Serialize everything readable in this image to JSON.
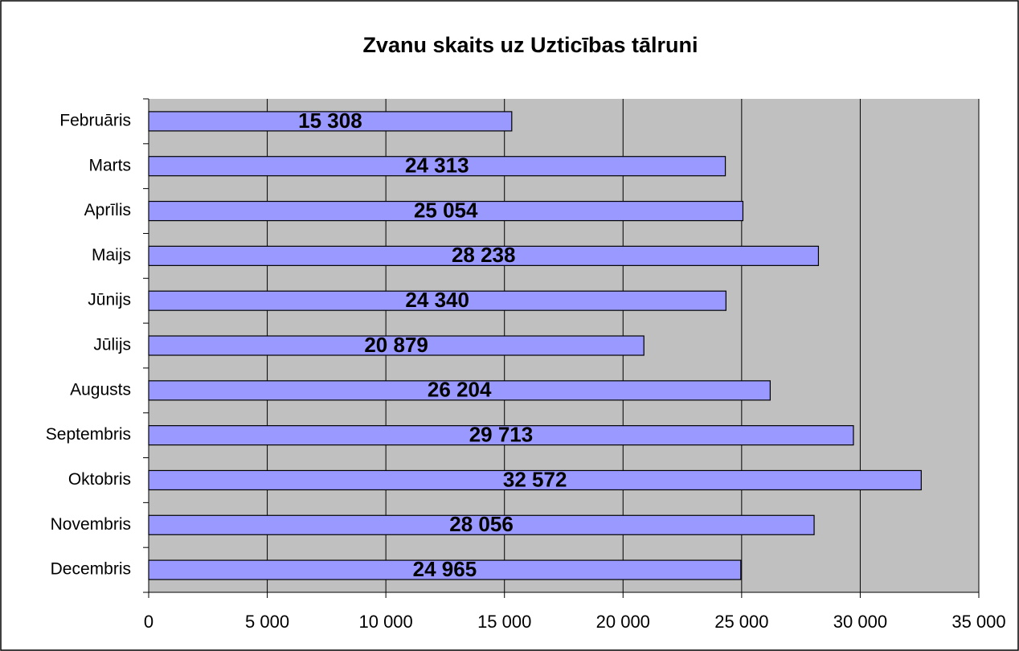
{
  "chart_data": {
    "type": "bar",
    "orientation": "horizontal",
    "title": "Zvanu skaits uz Uzticības tālruni",
    "categories": [
      "Februāris",
      "Marts",
      "Aprīlis",
      "Maijs",
      "Jūnijs",
      "Jūlijs",
      "Augusts",
      "Septembris",
      "Oktobris",
      "Novembris",
      "Decembris"
    ],
    "values": [
      15308,
      24313,
      25054,
      28238,
      24340,
      20879,
      26204,
      29713,
      32572,
      28056,
      24965
    ],
    "value_labels": [
      "15 308",
      "24 313",
      "25 054",
      "28 238",
      "24 340",
      "20 879",
      "26 204",
      "29 713",
      "32 572",
      "28 056",
      "24 965"
    ],
    "color": "#9999ff",
    "xlim": [
      0,
      35000
    ],
    "xticks": [
      0,
      {
        "value": 5000,
        "label": "5 000"
      },
      {
        "value": 10000,
        "label": "10 000"
      },
      {
        "value": 15000,
        "label": "15 000"
      },
      {
        "value": 20000,
        "label": "20 000"
      },
      {
        "value": 25000,
        "label": "25 000"
      },
      {
        "value": 30000,
        "label": "30 000"
      },
      {
        "value": 35000,
        "label": "35 000"
      }
    ],
    "grid": true
  }
}
